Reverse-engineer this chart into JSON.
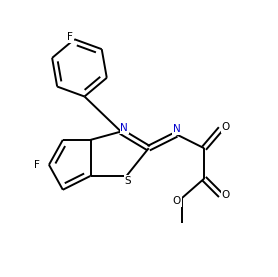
{
  "bg_color": "#ffffff",
  "line_color": "#000000",
  "n_color": "#0000cd",
  "s_color": "#000000",
  "o_color": "#000000",
  "f_color": "#000000",
  "figsize": [
    2.78,
    2.77
  ],
  "dpi": 100,
  "lw": 1.4,
  "fs": 7.5,
  "xlim": [
    0,
    10
  ],
  "ylim": [
    0,
    10
  ]
}
